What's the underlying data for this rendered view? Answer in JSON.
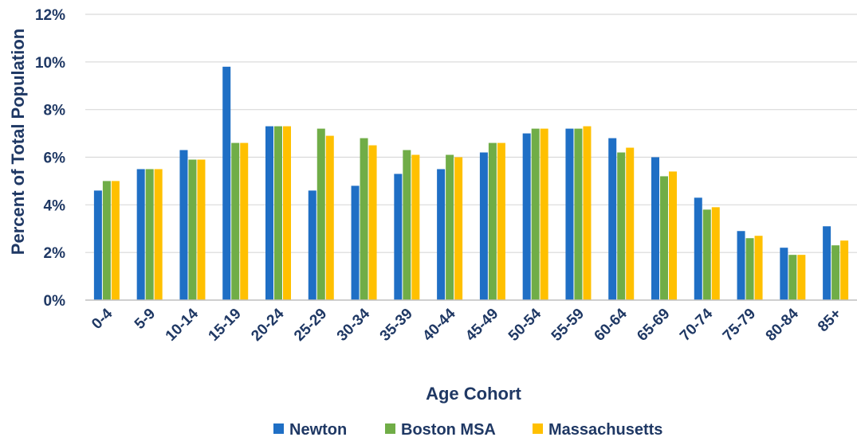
{
  "chart_data": {
    "type": "bar",
    "title": "",
    "xlabel": "Age Cohort",
    "ylabel": "Percent of Total Population",
    "ylim": [
      0,
      12
    ],
    "y_ticks": [
      "0%",
      "2%",
      "4%",
      "6%",
      "8%",
      "10%",
      "12%"
    ],
    "y_tick_values": [
      0,
      2,
      4,
      6,
      8,
      10,
      12
    ],
    "grid": true,
    "legend_position": "bottom",
    "categories": [
      "0-4",
      "5-9",
      "10-14",
      "15-19",
      "20-24",
      "25-29",
      "30-34",
      "35-39",
      "40-44",
      "45-49",
      "50-54",
      "55-59",
      "60-64",
      "65-69",
      "70-74",
      "75-79",
      "80-84",
      "85+"
    ],
    "series": [
      {
        "name": "Newton",
        "color": "#1f6fc5",
        "values": [
          4.6,
          5.5,
          6.3,
          9.8,
          7.3,
          4.6,
          4.8,
          5.3,
          5.5,
          6.2,
          7.0,
          7.2,
          6.8,
          6.0,
          4.3,
          2.9,
          2.2,
          3.1
        ]
      },
      {
        "name": "Boston MSA",
        "color": "#70ad47",
        "values": [
          5.0,
          5.5,
          5.9,
          6.6,
          7.3,
          7.2,
          6.8,
          6.3,
          6.1,
          6.6,
          7.2,
          7.2,
          6.2,
          5.2,
          3.8,
          2.6,
          1.9,
          2.3
        ]
      },
      {
        "name": "Massachusetts",
        "color": "#ffc000",
        "values": [
          5.0,
          5.5,
          5.9,
          6.6,
          7.3,
          6.9,
          6.5,
          6.1,
          6.0,
          6.6,
          7.2,
          7.3,
          6.4,
          5.4,
          3.9,
          2.7,
          1.9,
          2.5
        ]
      }
    ]
  }
}
